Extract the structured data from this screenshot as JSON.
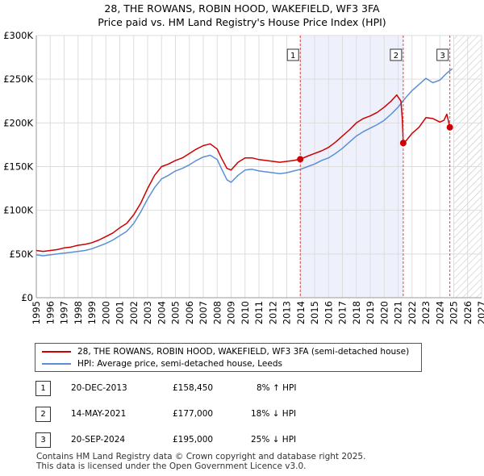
{
  "header": {
    "title_line1": "28, THE ROWANS, ROBIN HOOD, WAKEFIELD, WF3 3FA",
    "title_line2": "Price paid vs. HM Land Registry's House Price Index (HPI)"
  },
  "chart_data": {
    "type": "line",
    "title": "28, THE ROWANS, ROBIN HOOD, WAKEFIELD, WF3 3FA",
    "subtitle": "Price paid vs. HM Land Registry's House Price Index (HPI)",
    "xlabel": "",
    "ylabel": "",
    "xlim": [
      1995,
      2027
    ],
    "ylim": [
      0,
      300000
    ],
    "grid": true,
    "x_ticks": [
      "1995",
      "1996",
      "1997",
      "1998",
      "1999",
      "2000",
      "2001",
      "2002",
      "2003",
      "2004",
      "2005",
      "2006",
      "2007",
      "2008",
      "2009",
      "2010",
      "2011",
      "2012",
      "2013",
      "2014",
      "2015",
      "2016",
      "2017",
      "2018",
      "2019",
      "2020",
      "2021",
      "2022",
      "2023",
      "2024",
      "2025",
      "2026",
      "2027"
    ],
    "y_ticks": [
      {
        "value": 0,
        "label": "£0"
      },
      {
        "value": 50000,
        "label": "£50K"
      },
      {
        "value": 100000,
        "label": "£100K"
      },
      {
        "value": 150000,
        "label": "£150K"
      },
      {
        "value": 200000,
        "label": "£200K"
      },
      {
        "value": 250000,
        "label": "£250K"
      },
      {
        "value": 300000,
        "label": "£300K"
      }
    ],
    "ownership_shading": {
      "from": 2013.97,
      "to": 2021.37,
      "color": "#eef0fb"
    },
    "future_hatch": {
      "from": 2025.0,
      "to": 2027.0
    },
    "series": [
      {
        "name": "28, THE ROWANS, ROBIN HOOD, WAKEFIELD, WF3 3FA (semi-detached house)",
        "color": "#cc0000",
        "x": [
          1995.0,
          1995.5,
          1996.0,
          1996.5,
          1997.0,
          1997.5,
          1998.0,
          1998.5,
          1999.0,
          1999.5,
          2000.0,
          2000.5,
          2001.0,
          2001.5,
          2002.0,
          2002.5,
          2003.0,
          2003.5,
          2004.0,
          2004.5,
          2005.0,
          2005.5,
          2006.0,
          2006.5,
          2007.0,
          2007.5,
          2008.0,
          2008.3,
          2008.7,
          2009.0,
          2009.5,
          2010.0,
          2010.5,
          2011.0,
          2011.5,
          2012.0,
          2012.5,
          2013.0,
          2013.5,
          2013.97,
          2014.5,
          2015.0,
          2015.5,
          2016.0,
          2016.5,
          2017.0,
          2017.5,
          2018.0,
          2018.5,
          2019.0,
          2019.5,
          2020.0,
          2020.5,
          2020.9,
          2021.2,
          2021.3,
          2021.37,
          2021.6,
          2022.0,
          2022.5,
          2023.0,
          2023.5,
          2024.0,
          2024.3,
          2024.5,
          2024.72
        ],
        "values": [
          54000,
          53000,
          54000,
          55000,
          57000,
          58000,
          60000,
          61000,
          63000,
          66000,
          70000,
          74000,
          80000,
          85000,
          95000,
          108000,
          125000,
          140000,
          150000,
          153000,
          157000,
          160000,
          165000,
          170000,
          174000,
          176000,
          170000,
          160000,
          148000,
          146000,
          155000,
          160000,
          160000,
          158000,
          157000,
          156000,
          155000,
          156000,
          157000,
          158450,
          162000,
          165000,
          168000,
          172000,
          178000,
          185000,
          192000,
          200000,
          205000,
          208000,
          212000,
          218000,
          225000,
          232000,
          225000,
          205000,
          177000,
          180000,
          188000,
          195000,
          206000,
          205000,
          201000,
          203000,
          210000,
          195000
        ]
      },
      {
        "name": "HPI: Average price, semi-detached house, Leeds",
        "color": "#5b8fd4",
        "x": [
          1995.0,
          1995.5,
          1996.0,
          1996.5,
          1997.0,
          1997.5,
          1998.0,
          1998.5,
          1999.0,
          1999.5,
          2000.0,
          2000.5,
          2001.0,
          2001.5,
          2002.0,
          2002.5,
          2003.0,
          2003.5,
          2004.0,
          2004.5,
          2005.0,
          2005.5,
          2006.0,
          2006.5,
          2007.0,
          2007.5,
          2008.0,
          2008.3,
          2008.7,
          2009.0,
          2009.5,
          2010.0,
          2010.5,
          2011.0,
          2011.5,
          2012.0,
          2012.5,
          2013.0,
          2013.5,
          2014.0,
          2014.5,
          2015.0,
          2015.5,
          2016.0,
          2016.5,
          2017.0,
          2017.5,
          2018.0,
          2018.5,
          2019.0,
          2019.5,
          2020.0,
          2020.5,
          2021.0,
          2021.5,
          2022.0,
          2022.5,
          2023.0,
          2023.5,
          2024.0,
          2024.5,
          2024.9
        ],
        "values": [
          49000,
          48000,
          49000,
          50000,
          51000,
          52000,
          53000,
          54000,
          56000,
          59000,
          62000,
          66000,
          71000,
          76000,
          85000,
          98000,
          113000,
          126000,
          136000,
          140000,
          145000,
          148000,
          152000,
          157000,
          161000,
          163000,
          158000,
          148000,
          135000,
          132000,
          140000,
          146000,
          147000,
          145000,
          144000,
          143000,
          142000,
          143000,
          145000,
          147000,
          150000,
          153000,
          157000,
          160000,
          165000,
          171000,
          178000,
          185000,
          190000,
          194000,
          198000,
          203000,
          210000,
          218000,
          228000,
          237000,
          244000,
          251000,
          246000,
          249000,
          257000,
          262000
        ]
      }
    ],
    "sales": [
      {
        "number": "1",
        "x": 2013.97,
        "value": 158450
      },
      {
        "number": "2",
        "x": 2021.37,
        "value": 177000
      },
      {
        "number": "3",
        "x": 2024.72,
        "value": 195000
      }
    ]
  },
  "legend": {
    "items": [
      {
        "label": "28, THE ROWANS, ROBIN HOOD, WAKEFIELD, WF3 3FA (semi-detached house)",
        "color": "#cc0000"
      },
      {
        "label": "HPI: Average price, semi-detached house, Leeds",
        "color": "#5b8fd4"
      }
    ]
  },
  "sales_table": [
    {
      "number": "1",
      "date": "20-DEC-2013",
      "price": "£158,450",
      "hpi": "8% ↑ HPI"
    },
    {
      "number": "2",
      "date": "14-MAY-2021",
      "price": "£177,000",
      "hpi": "18% ↓ HPI"
    },
    {
      "number": "3",
      "date": "20-SEP-2024",
      "price": "£195,000",
      "hpi": "25% ↓ HPI"
    }
  ],
  "footer": {
    "line1": "Contains HM Land Registry data © Crown copyright and database right 2025.",
    "line2": "This data is licensed under the Open Government Licence v3.0."
  }
}
